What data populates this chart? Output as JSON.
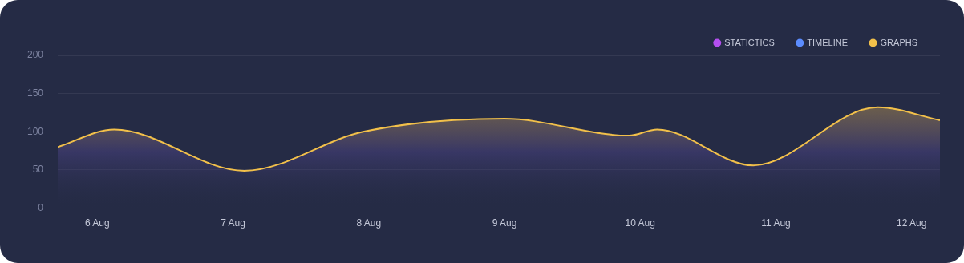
{
  "chart_data": {
    "type": "area",
    "x": [
      "--08-05T17:00",
      "--08-06T03:00",
      "--08-07T02:00",
      "--08-07T23:00",
      "--08-09T00:00",
      "--08-09T22:00",
      "--08-10T03:00",
      "--08-10T20:00",
      "--08-11T18:00",
      "--08-12T05:00"
    ],
    "series": [
      {
        "name": "STATICTICS",
        "color": "#b44ff0",
        "values": [
          null,
          null,
          null,
          null,
          null,
          null,
          null,
          null,
          null,
          null
        ]
      },
      {
        "name": "TIMELINE",
        "color": "#5b8cff",
        "values": [
          null,
          null,
          null,
          null,
          null,
          null,
          null,
          null,
          null,
          null
        ]
      },
      {
        "name": "GRAPHS",
        "color": "#f2c04a",
        "values": [
          80,
          103,
          49,
          100,
          117,
          95,
          103,
          56,
          132,
          115
        ]
      }
    ],
    "xlim": [
      "--08-05T17:00",
      "--08-12T05:00"
    ],
    "xticks": [
      {
        "value": "--08-06",
        "label": "6 Aug"
      },
      {
        "value": "--08-07",
        "label": "7 Aug"
      },
      {
        "value": "--08-08",
        "label": "8 Aug"
      },
      {
        "value": "--08-09",
        "label": "9 Aug"
      },
      {
        "value": "--08-10",
        "label": "10 Aug"
      },
      {
        "value": "--08-11",
        "label": "11 Aug"
      },
      {
        "value": "--08-12",
        "label": "12 Aug"
      }
    ],
    "ylim": [
      0,
      200
    ],
    "yticks": [
      0,
      50,
      100,
      150,
      200
    ],
    "grid": "y",
    "legend": "top right",
    "marker": "none",
    "line_style": "solid"
  }
}
